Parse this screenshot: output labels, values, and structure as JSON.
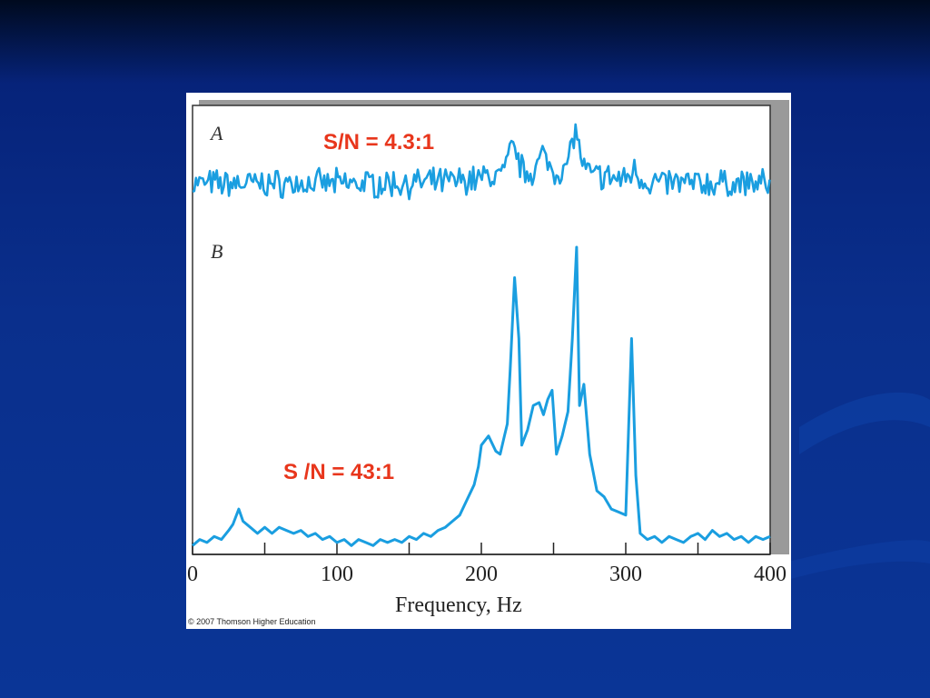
{
  "chart_data": {
    "type": "line",
    "xlabel": "Frequency, Hz",
    "xlim": [
      0,
      400
    ],
    "x_ticks": [
      0,
      100,
      200,
      300,
      400
    ],
    "x_tick_labels": [
      "0",
      "100",
      "200",
      "300",
      "400"
    ],
    "color": "#1a9ee0",
    "panels": [
      {
        "label": "A",
        "annotation": "S/N = 4.3:1",
        "signal_peaks": [
          {
            "x": 222,
            "rel_height": 0.35
          },
          {
            "x": 265,
            "rel_height": 0.55
          },
          {
            "x": 243,
            "rel_height": 0.2
          },
          {
            "x": 306,
            "rel_height": 0.15
          }
        ],
        "noise_level": "high"
      },
      {
        "label": "B",
        "annotation": "S /N = 43:1",
        "points": [
          [
            0,
            0.02
          ],
          [
            5,
            0.04
          ],
          [
            10,
            0.03
          ],
          [
            15,
            0.05
          ],
          [
            20,
            0.04
          ],
          [
            25,
            0.07
          ],
          [
            28,
            0.09
          ],
          [
            32,
            0.14
          ],
          [
            35,
            0.1
          ],
          [
            40,
            0.08
          ],
          [
            45,
            0.06
          ],
          [
            50,
            0.08
          ],
          [
            55,
            0.06
          ],
          [
            60,
            0.08
          ],
          [
            65,
            0.07
          ],
          [
            70,
            0.06
          ],
          [
            75,
            0.07
          ],
          [
            80,
            0.05
          ],
          [
            85,
            0.06
          ],
          [
            90,
            0.04
          ],
          [
            95,
            0.05
          ],
          [
            100,
            0.03
          ],
          [
            105,
            0.04
          ],
          [
            110,
            0.02
          ],
          [
            115,
            0.04
          ],
          [
            120,
            0.03
          ],
          [
            125,
            0.02
          ],
          [
            130,
            0.04
          ],
          [
            135,
            0.03
          ],
          [
            140,
            0.04
          ],
          [
            145,
            0.03
          ],
          [
            150,
            0.05
          ],
          [
            155,
            0.04
          ],
          [
            160,
            0.06
          ],
          [
            165,
            0.05
          ],
          [
            170,
            0.07
          ],
          [
            175,
            0.08
          ],
          [
            180,
            0.1
          ],
          [
            185,
            0.12
          ],
          [
            190,
            0.17
          ],
          [
            195,
            0.22
          ],
          [
            198,
            0.28
          ],
          [
            200,
            0.35
          ],
          [
            205,
            0.38
          ],
          [
            210,
            0.33
          ],
          [
            213,
            0.32
          ],
          [
            216,
            0.38
          ],
          [
            218,
            0.42
          ],
          [
            220,
            0.6
          ],
          [
            223,
            0.9
          ],
          [
            226,
            0.7
          ],
          [
            228,
            0.35
          ],
          [
            232,
            0.4
          ],
          [
            236,
            0.48
          ],
          [
            240,
            0.49
          ],
          [
            243,
            0.45
          ],
          [
            246,
            0.5
          ],
          [
            249,
            0.53
          ],
          [
            252,
            0.32
          ],
          [
            256,
            0.38
          ],
          [
            260,
            0.46
          ],
          [
            263,
            0.7
          ],
          [
            266,
            1.0
          ],
          [
            268,
            0.48
          ],
          [
            271,
            0.55
          ],
          [
            275,
            0.32
          ],
          [
            280,
            0.2
          ],
          [
            285,
            0.18
          ],
          [
            290,
            0.14
          ],
          [
            295,
            0.13
          ],
          [
            300,
            0.12
          ],
          [
            304,
            0.7
          ],
          [
            307,
            0.25
          ],
          [
            310,
            0.06
          ],
          [
            315,
            0.04
          ],
          [
            320,
            0.05
          ],
          [
            325,
            0.03
          ],
          [
            330,
            0.05
          ],
          [
            335,
            0.04
          ],
          [
            340,
            0.03
          ],
          [
            345,
            0.05
          ],
          [
            350,
            0.06
          ],
          [
            355,
            0.04
          ],
          [
            360,
            0.07
          ],
          [
            365,
            0.05
          ],
          [
            370,
            0.06
          ],
          [
            375,
            0.04
          ],
          [
            380,
            0.05
          ],
          [
            385,
            0.03
          ],
          [
            390,
            0.05
          ],
          [
            395,
            0.04
          ],
          [
            400,
            0.05
          ]
        ]
      }
    ],
    "copyright": "© 2007 Thomson Higher Education"
  },
  "colors": {
    "background_top": "#000a1e",
    "background": "#0a3596",
    "trace": "#1a9ee0",
    "annotation": "#e8361c"
  }
}
